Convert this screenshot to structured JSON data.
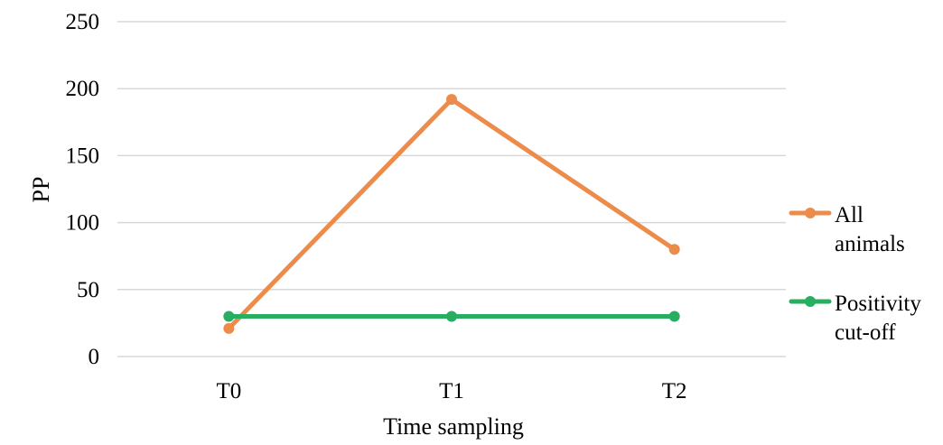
{
  "chart_data": {
    "type": "line",
    "title": "",
    "xlabel": "Time sampling",
    "ylabel": "PP",
    "categories": [
      "T0",
      "T1",
      "T2"
    ],
    "ylim": [
      0,
      250
    ],
    "yticks": [
      0,
      50,
      100,
      150,
      200,
      250
    ],
    "grid": true,
    "legend_position": "right",
    "series": [
      {
        "name": "All animals",
        "legend_lines": [
          "All",
          "animals"
        ],
        "color": "#ed8c4a",
        "values": [
          21,
          192,
          80
        ]
      },
      {
        "name": "Positivity cut-off",
        "legend_lines": [
          "Positivity",
          "cut-off"
        ],
        "color": "#27ae60",
        "values": [
          30,
          30,
          30
        ]
      }
    ]
  }
}
